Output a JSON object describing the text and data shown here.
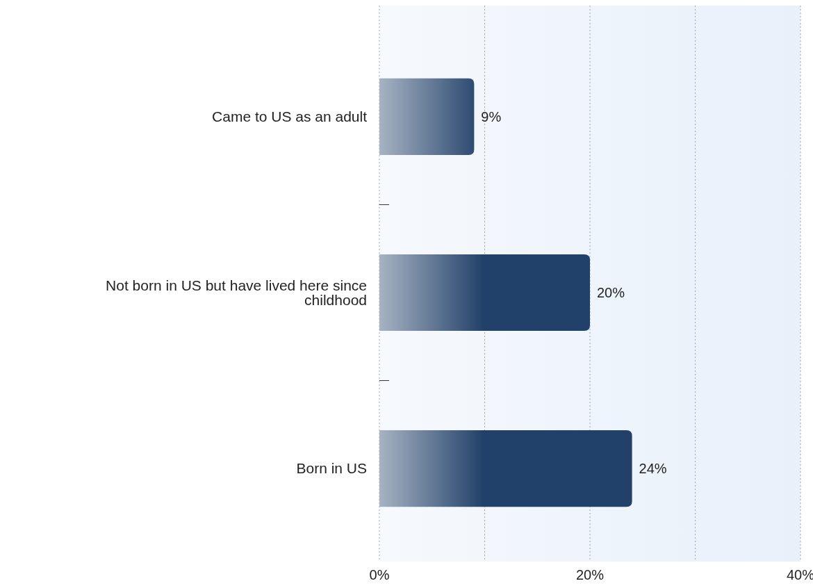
{
  "chart_data": {
    "type": "bar",
    "orientation": "horizontal",
    "categories": [
      "Came to US as an adult",
      "Not born in US but have lived here since childhood",
      "Born in US"
    ],
    "values": [
      9,
      20,
      24
    ],
    "value_labels": [
      "9%",
      "20%",
      "24%"
    ],
    "color": "#22416a",
    "xlim": [
      0,
      40
    ],
    "xticks": [
      {
        "value": 0,
        "label": "0%"
      },
      {
        "value": 10,
        "label": null
      },
      {
        "value": 20,
        "label": "20%"
      },
      {
        "value": 30,
        "label": null
      },
      {
        "value": 40,
        "label": "40%"
      }
    ],
    "grid": "x"
  }
}
